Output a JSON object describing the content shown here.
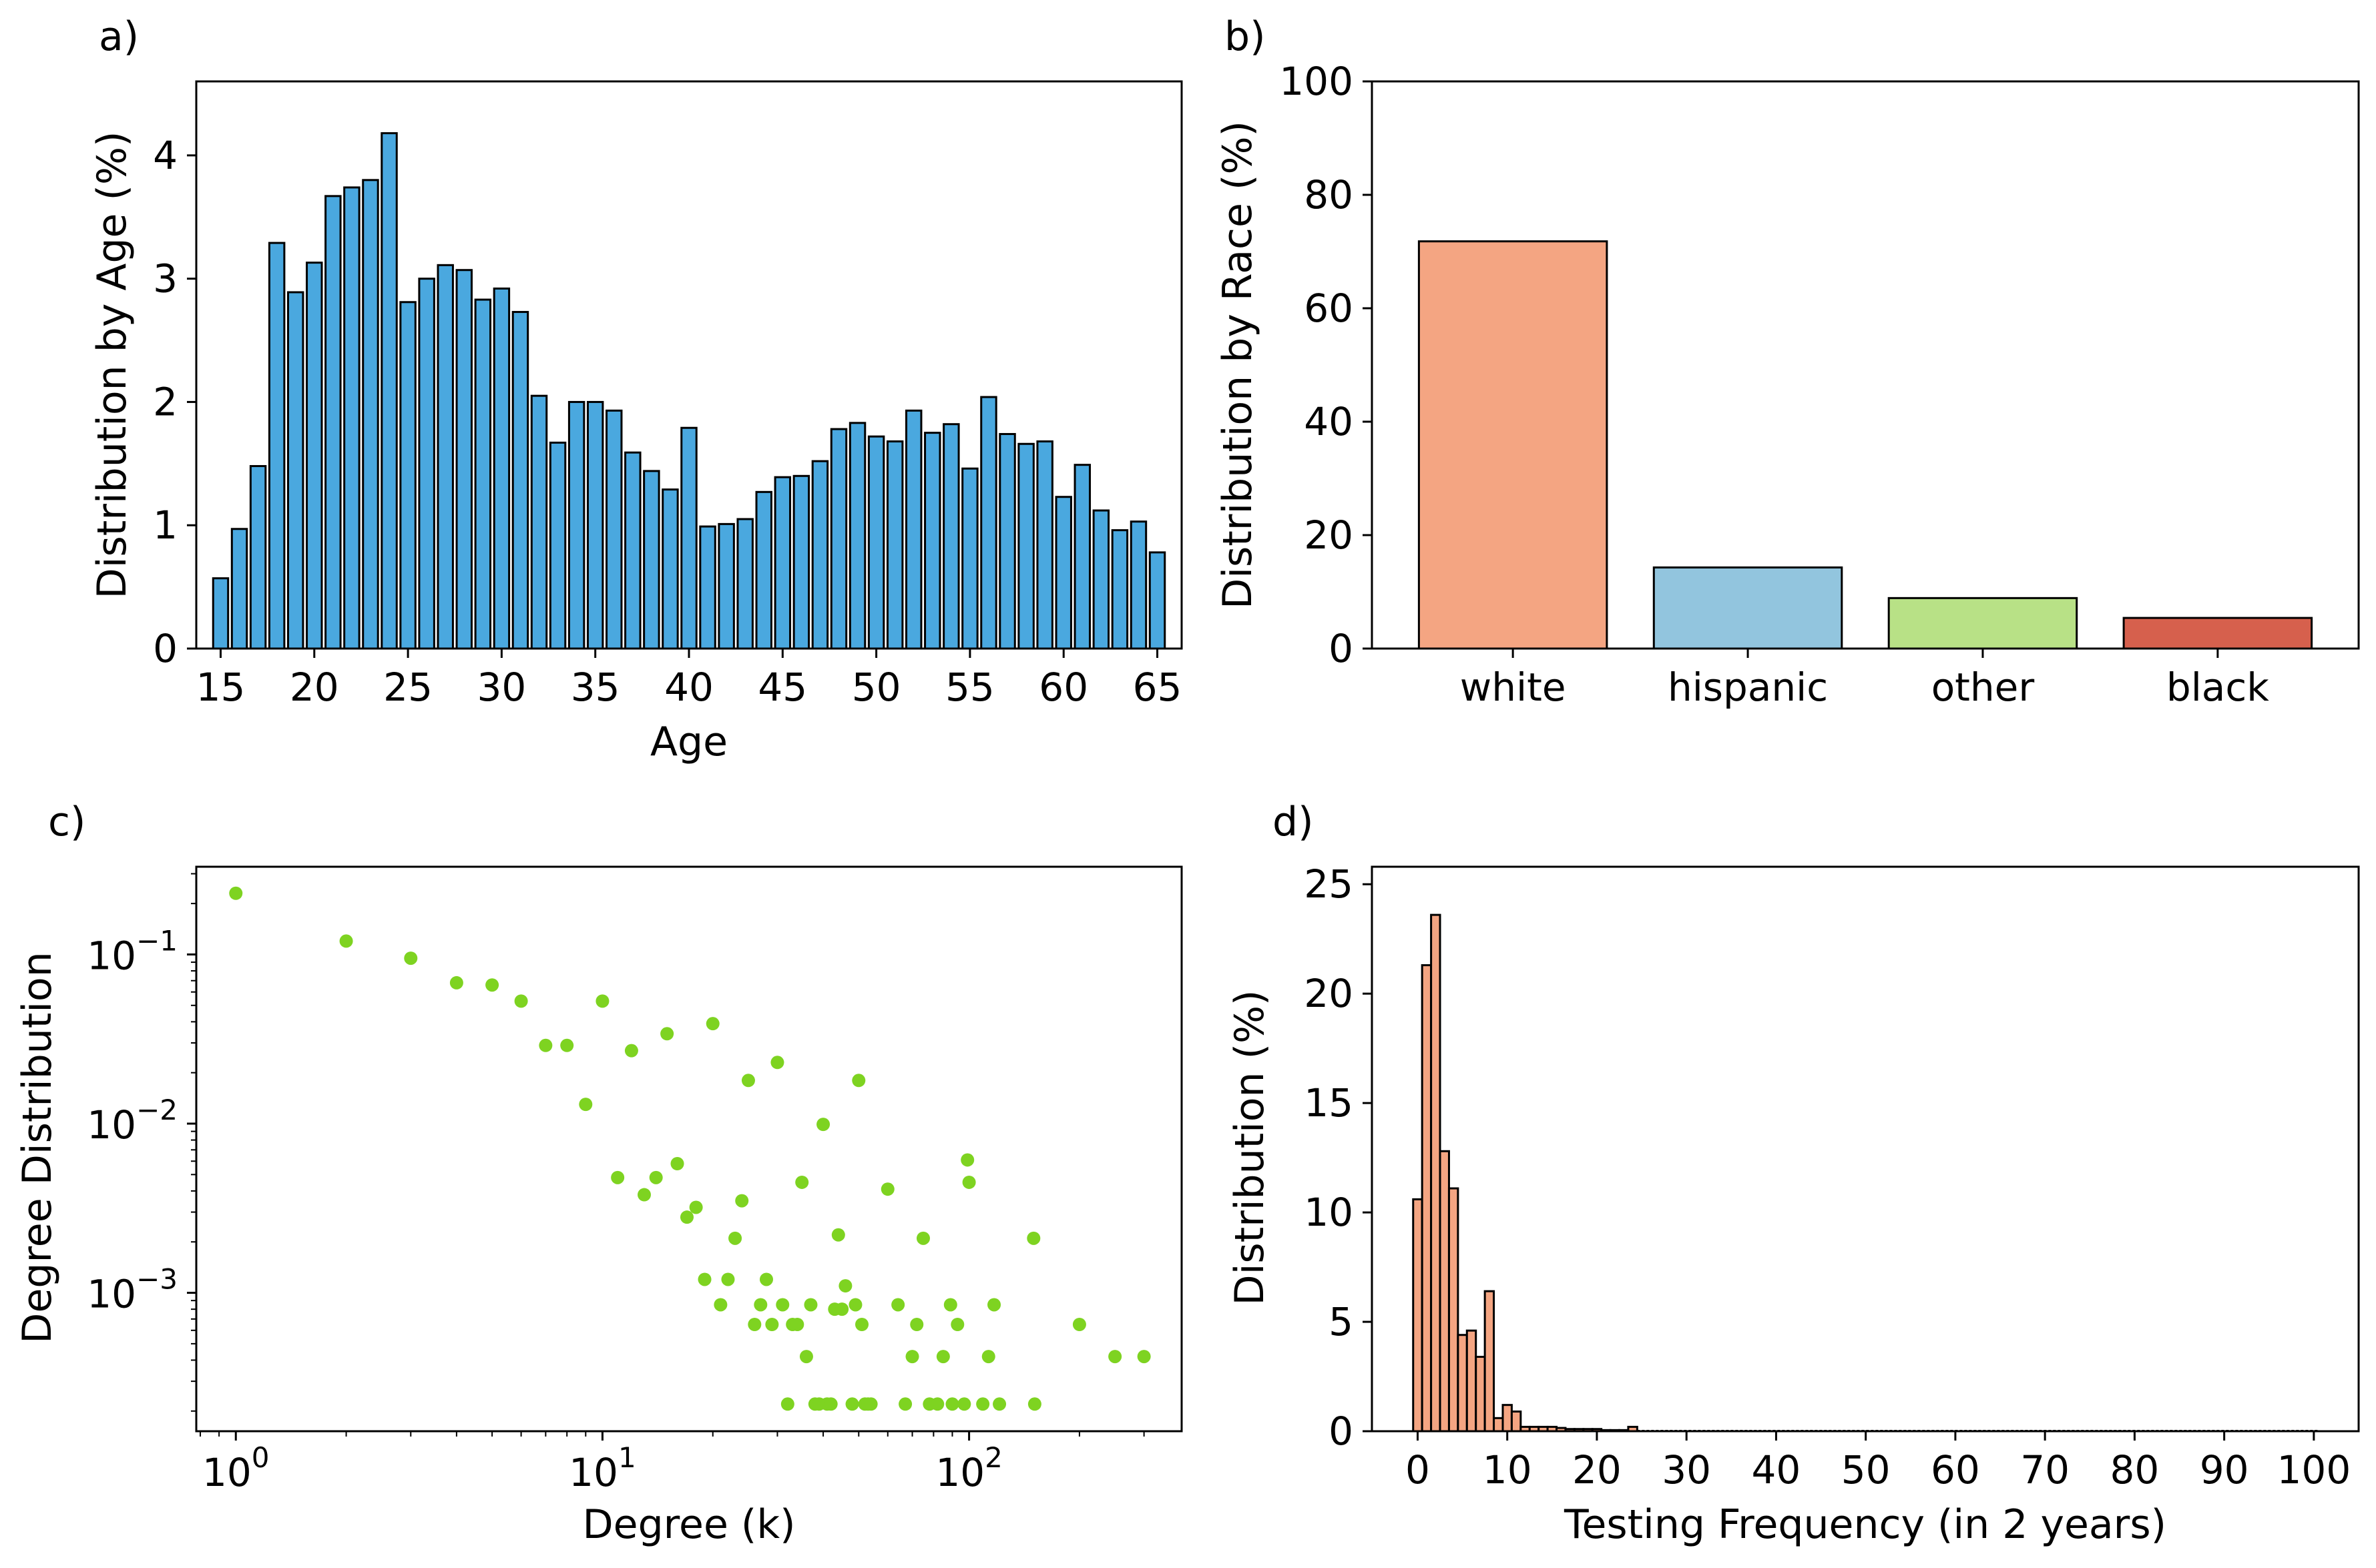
{
  "colors": {
    "age_bars": "#4aa8df",
    "race": [
      "#f4a582",
      "#92c5de",
      "#b8e186",
      "#d6604d"
    ],
    "degree_points": "#7ed321",
    "testing_bars": "#f4a582",
    "edge": "#000000"
  },
  "chart_data": [
    {
      "panel": "a)",
      "type": "bar",
      "xlabel": "Age",
      "ylabel": "Distribution by Age (%)",
      "x": [
        15,
        16,
        17,
        18,
        19,
        20,
        21,
        22,
        23,
        24,
        25,
        26,
        27,
        28,
        29,
        30,
        31,
        32,
        33,
        34,
        35,
        36,
        37,
        38,
        39,
        40,
        41,
        42,
        43,
        44,
        45,
        46,
        47,
        48,
        49,
        50,
        51,
        52,
        53,
        54,
        55,
        56,
        57,
        58,
        59,
        60,
        61,
        62,
        63,
        64,
        65
      ],
      "values": [
        0.57,
        0.97,
        1.48,
        3.29,
        2.89,
        3.13,
        3.67,
        3.74,
        3.8,
        4.18,
        2.81,
        3.0,
        3.11,
        3.07,
        2.83,
        2.92,
        2.73,
        2.05,
        1.67,
        2.0,
        2.0,
        1.93,
        1.59,
        1.44,
        1.29,
        1.79,
        0.99,
        1.01,
        1.05,
        1.27,
        1.39,
        1.4,
        1.52,
        1.78,
        1.83,
        1.72,
        1.68,
        1.93,
        1.75,
        1.82,
        1.46,
        2.04,
        1.74,
        1.66,
        1.68,
        1.23,
        1.49,
        1.12,
        0.96,
        1.03,
        0.78
      ],
      "xticks": [
        15,
        20,
        25,
        30,
        35,
        40,
        45,
        50,
        55,
        60,
        65
      ],
      "yticks": [
        0,
        1,
        2,
        3,
        4
      ],
      "xlim": [
        13.7,
        66.3
      ],
      "ylim": [
        0,
        4.6
      ]
    },
    {
      "panel": "b)",
      "type": "bar",
      "xlabel": "",
      "ylabel": "Distribution by Race (%)",
      "categories": [
        "white",
        "hispanic",
        "other",
        "black"
      ],
      "values": [
        71.8,
        14.3,
        8.9,
        5.4
      ],
      "yticks": [
        0,
        20,
        40,
        60,
        80,
        100
      ],
      "ylim": [
        0,
        100
      ]
    },
    {
      "panel": "c)",
      "type": "scatter",
      "xlabel": "Degree (k)",
      "ylabel": "Degree Distribution",
      "xscale": "log",
      "yscale": "log",
      "xticks": [
        "10^0",
        "10^1",
        "10^2"
      ],
      "yticks": [
        "10^-1",
        "10^-2",
        "10^-3"
      ],
      "xlim": [
        0.78,
        380
      ],
      "ylim": [
        0.000152,
        0.33
      ],
      "x": [
        1,
        2,
        3,
        4,
        5,
        6,
        7,
        8,
        9,
        10,
        11,
        12,
        13,
        14,
        15,
        16,
        17,
        18,
        19,
        20,
        21,
        22,
        23,
        24,
        25,
        26,
        27,
        28,
        29,
        30,
        31,
        32,
        33,
        34,
        35,
        36,
        37,
        38,
        39,
        40,
        41,
        42,
        43,
        44,
        45,
        46,
        48,
        49,
        50,
        51,
        52,
        53,
        54,
        60,
        64,
        67,
        70,
        72,
        75,
        78,
        82,
        85,
        89,
        90,
        93,
        97,
        99,
        100,
        109,
        113,
        117,
        121,
        150,
        151,
        200,
        250,
        300
      ],
      "y": [
        0.23,
        0.12,
        0.095,
        0.068,
        0.066,
        0.053,
        0.029,
        0.029,
        0.013,
        0.053,
        0.0048,
        0.027,
        0.0038,
        0.0048,
        0.034,
        0.0058,
        0.0028,
        0.0032,
        0.0012,
        0.039,
        0.00085,
        0.0012,
        0.0021,
        0.0035,
        0.018,
        0.00065,
        0.00085,
        0.0012,
        0.00065,
        0.023,
        0.00085,
        0.00022,
        0.00065,
        0.00065,
        0.0045,
        0.00042,
        0.00085,
        0.00022,
        0.00022,
        0.0099,
        0.00022,
        0.00022,
        0.0008,
        0.0022,
        0.0008,
        0.0011,
        0.00022,
        0.00085,
        0.018,
        0.00065,
        0.00022,
        0.00022,
        0.00022,
        0.0041,
        0.00085,
        0.00022,
        0.00042,
        0.00065,
        0.0021,
        0.00022,
        0.00022,
        0.00042,
        0.00085,
        0.00022,
        0.00065,
        0.00022,
        0.0061,
        0.0045,
        0.00022,
        0.00042,
        0.00085,
        0.00022,
        0.0021,
        0.00022,
        0.00065,
        0.00042,
        0.00042
      ]
    },
    {
      "panel": "d)",
      "type": "bar",
      "xlabel": "Testing Frequency (in 2 years)",
      "ylabel": "Distribution (%)",
      "x": [
        0,
        1,
        2,
        3,
        4,
        5,
        6,
        7,
        8,
        9,
        10,
        11,
        12,
        13,
        14,
        15,
        16,
        17,
        18,
        19,
        20,
        21,
        22,
        23,
        24
      ],
      "values": [
        10.6,
        21.3,
        23.6,
        12.8,
        11.1,
        4.4,
        4.6,
        3.4,
        6.4,
        0.6,
        1.2,
        0.9,
        0.2,
        0.2,
        0.2,
        0.2,
        0.15,
        0.1,
        0.1,
        0.1,
        0.1,
        0.05,
        0.05,
        0.05,
        0.2
      ],
      "xticks": [
        0,
        10,
        20,
        30,
        40,
        50,
        60,
        70,
        80,
        90,
        100
      ],
      "yticks": [
        0,
        5,
        10,
        15,
        20,
        25
      ],
      "xlim": [
        -5.1,
        105
      ],
      "ylim": [
        0,
        25.8
      ]
    }
  ]
}
